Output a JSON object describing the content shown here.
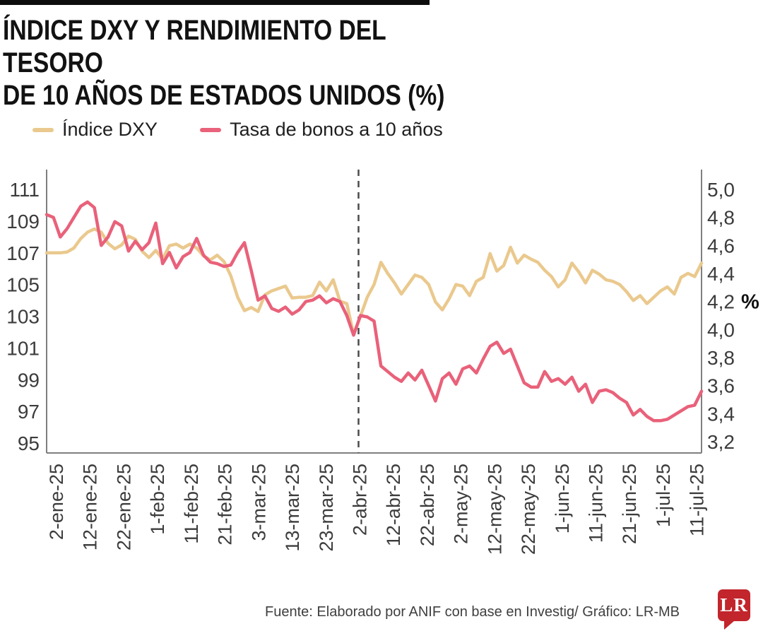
{
  "header": {
    "title_line1": "ÍNDICE DXY Y RENDIMIENTO DEL TESORO",
    "title_line2": "DE 10 AÑOS DE ESTADOS UNIDOS (%)"
  },
  "legend": [
    {
      "label": "Índice DXY",
      "color": "#eac98e"
    },
    {
      "label": "Tasa de bonos a 10 años",
      "color": "#e9617a"
    }
  ],
  "footer": {
    "source": "Fuente: Elaborado por ANIF con base en Investig/ Gráfico: LR-MB",
    "logo_text": "LR",
    "logo_color": "#c2252c"
  },
  "chart_data": {
    "type": "line",
    "grid": false,
    "legend_position": "top",
    "x_tick_labels": [
      "2-ene-25",
      "12-ene-25",
      "22-ene-25",
      "1-feb-25",
      "11-feb-25",
      "21-feb-25",
      "3-mar-25",
      "13-mar-25",
      "23-mar-25",
      "2-abr-25",
      "12-abr-25",
      "22-abr-25",
      "2-may-25",
      "12-may-25",
      "22-may-25",
      "1-jun-25",
      "11-jun-25",
      "21-jun-25",
      "1-jul-25",
      "11-jul-25"
    ],
    "left_axis": {
      "series": "Índice DXY",
      "tick_labels": [
        "111",
        "109",
        "107",
        "105",
        "103",
        "101",
        "99",
        "97",
        "95"
      ],
      "range": [
        95,
        111
      ]
    },
    "right_axis": {
      "series": "Tasa de bonos a 10 años",
      "tick_labels": [
        "5,0",
        "4,8",
        "4,6",
        "4,4",
        "4,2",
        "4,0",
        "3,8",
        "3,6",
        "3,4",
        "3,2"
      ],
      "range": [
        3.2,
        5.0
      ],
      "unit_label": "%",
      "unit_label_at_tick": "4,2"
    },
    "event_line": {
      "at_label": "2-abr-25",
      "tick_index": 9,
      "style": "dashed",
      "color": "#4a4a4a"
    },
    "axis_color": "#7f7f7f",
    "label_color": "#3c3c3c",
    "series": [
      {
        "name": "Índice DXY",
        "axis": "left",
        "color": "#eac98e",
        "values": [
          107.0,
          107.0,
          107.0,
          107.05,
          107.3,
          107.9,
          108.3,
          108.5,
          108.3,
          107.6,
          107.25,
          107.5,
          108.05,
          107.85,
          107.1,
          106.7,
          107.15,
          106.6,
          107.45,
          107.55,
          107.3,
          107.55,
          107.3,
          106.8,
          106.55,
          106.85,
          106.45,
          105.55,
          104.2,
          103.35,
          103.55,
          103.3,
          104.35,
          104.6,
          104.75,
          104.9,
          104.15,
          104.2,
          104.2,
          104.3,
          105.15,
          104.6,
          105.3,
          103.95,
          103.8,
          101.85,
          103.0,
          104.2,
          105.0,
          106.4,
          105.7,
          105.1,
          104.4,
          105.0,
          105.6,
          105.45,
          105.0,
          103.9,
          103.4,
          104.1,
          105.0,
          104.9,
          104.3,
          105.2,
          105.45,
          106.95,
          105.85,
          106.2,
          107.35,
          106.35,
          106.85,
          106.6,
          106.4,
          105.9,
          105.5,
          104.85,
          105.3,
          106.35,
          105.8,
          105.1,
          105.9,
          105.65,
          105.3,
          105.2,
          105.0,
          104.55,
          104.0,
          104.3,
          103.8,
          104.2,
          104.6,
          104.85,
          104.4,
          105.45,
          105.7,
          105.5,
          106.35
        ]
      },
      {
        "name": "Tasa de bonos a 10 años",
        "axis": "right",
        "color": "#e9617a",
        "values": [
          4.82,
          4.8,
          4.66,
          4.72,
          4.8,
          4.88,
          4.91,
          4.87,
          4.6,
          4.66,
          4.77,
          4.74,
          4.56,
          4.63,
          4.57,
          4.62,
          4.76,
          4.47,
          4.55,
          4.44,
          4.52,
          4.55,
          4.65,
          4.53,
          4.48,
          4.47,
          4.45,
          4.46,
          4.55,
          4.62,
          4.42,
          4.21,
          4.24,
          4.15,
          4.13,
          4.16,
          4.11,
          4.14,
          4.2,
          4.21,
          4.24,
          4.19,
          4.22,
          4.2,
          4.1,
          3.96,
          4.1,
          4.09,
          4.06,
          3.74,
          3.7,
          3.66,
          3.63,
          3.69,
          3.64,
          3.71,
          3.6,
          3.49,
          3.65,
          3.69,
          3.61,
          3.72,
          3.74,
          3.69,
          3.79,
          3.88,
          3.91,
          3.83,
          3.86,
          3.74,
          3.62,
          3.59,
          3.59,
          3.7,
          3.63,
          3.65,
          3.61,
          3.66,
          3.56,
          3.61,
          3.48,
          3.56,
          3.57,
          3.55,
          3.51,
          3.48,
          3.39,
          3.43,
          3.38,
          3.35,
          3.35,
          3.36,
          3.39,
          3.42,
          3.45,
          3.46,
          3.56
        ]
      }
    ]
  }
}
